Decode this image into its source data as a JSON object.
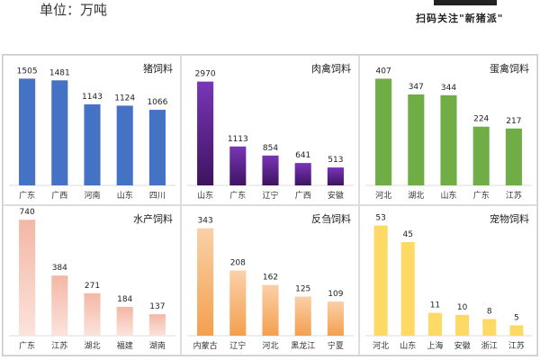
{
  "header": {
    "unit": "单位：万吨",
    "qr_caption": "扫码关注\"新猪派\""
  },
  "watermark": "新猪派",
  "chart_data": [
    {
      "type": "bar",
      "title": "猪饲料",
      "categories": [
        "广东",
        "广西",
        "河南",
        "山东",
        "四川"
      ],
      "values": [
        1505,
        1481,
        1143,
        1124,
        1066
      ],
      "ylim": [
        0,
        1700
      ],
      "color": "#4472c4",
      "color2": "#4472c4"
    },
    {
      "type": "bar",
      "title": "肉禽饲料",
      "categories": [
        "山东",
        "广东",
        "辽宁",
        "广西",
        "安徽"
      ],
      "values": [
        2970,
        1113,
        854,
        641,
        513
      ],
      "ylim": [
        0,
        3450
      ],
      "color": "#7a35b8",
      "color2": "#3d1460"
    },
    {
      "type": "bar",
      "title": "蛋禽饲料",
      "categories": [
        "河北",
        "湖北",
        "山东",
        "广东",
        "江苏"
      ],
      "values": [
        407,
        347,
        344,
        224,
        217
      ],
      "ylim": [
        0,
        460
      ],
      "color": "#70ad47",
      "color2": "#70ad47"
    },
    {
      "type": "bar",
      "title": "水产饲料",
      "categories": [
        "广东",
        "江苏",
        "湖北",
        "福建",
        "湖南"
      ],
      "values": [
        740,
        384,
        271,
        184,
        137
      ],
      "ylim": [
        0,
        770
      ],
      "color": "#f4b7a6",
      "color2": "#fbe3dc"
    },
    {
      "type": "bar",
      "title": "反刍饲料",
      "categories": [
        "内蒙古",
        "辽宁",
        "河北",
        "黑龙江",
        "宁夏"
      ],
      "values": [
        343,
        208,
        162,
        125,
        109
      ],
      "ylim": [
        0,
        385
      ],
      "color": "#fad0a8",
      "color2": "#f3a04e"
    },
    {
      "type": "bar",
      "title": "宠物饲料",
      "categories": [
        "河北",
        "山东",
        "上海",
        "安徽",
        "浙江",
        "江苏"
      ],
      "values": [
        53,
        45,
        11,
        10,
        8,
        5
      ],
      "ylim": [
        0,
        58
      ],
      "color": "#ffd966",
      "color2": "#ffd966"
    }
  ]
}
